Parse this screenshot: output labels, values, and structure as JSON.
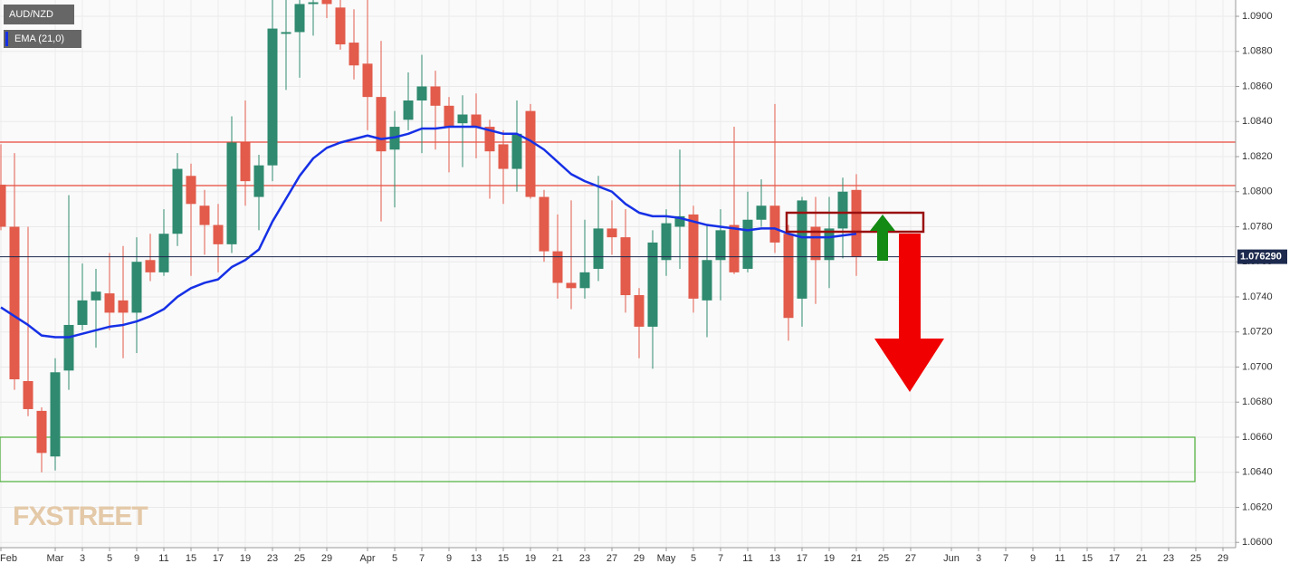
{
  "chart_data": {
    "type": "candlestick",
    "symbol": "AUD/NZD",
    "watermark": "FXSTREET",
    "categories": [
      "Feb",
      null,
      null,
      null,
      "Mar",
      null,
      "3",
      null,
      "5",
      null,
      "9",
      null,
      "11",
      null,
      "15",
      null,
      "17",
      null,
      "19",
      null,
      "23",
      null,
      "25",
      null,
      "29",
      null,
      null,
      "Apr",
      null,
      "5",
      null,
      "7",
      null,
      "9",
      null,
      "13",
      null,
      "15",
      null,
      "19",
      null,
      "21",
      null,
      "23",
      null,
      "27",
      null,
      "29",
      null,
      "May",
      null,
      "5",
      null,
      "7",
      null,
      "11",
      null,
      "13",
      null,
      "17",
      null,
      "19",
      null,
      "21",
      null,
      "25",
      null,
      "27",
      null,
      null,
      "Jun",
      null,
      "3",
      null,
      "7",
      null,
      "9",
      null,
      "11",
      null,
      "15",
      null,
      "17",
      null,
      "21",
      null,
      "23",
      null,
      "25",
      null,
      "29"
    ],
    "open": [
      1.0804,
      1.078,
      1.0692,
      1.0675,
      1.0649,
      1.0698,
      1.0724,
      1.0738,
      1.0742,
      1.0738,
      1.0731,
      1.0761,
      1.0754,
      1.0776,
      1.0809,
      1.0792,
      1.0781,
      1.077,
      1.0828,
      1.0797,
      1.0815,
      1.089,
      1.0891,
      1.0907,
      1.091,
      1.0905,
      1.0885,
      1.0873,
      1.0854,
      1.0824,
      1.0841,
      1.0852,
      1.086,
      1.0849,
      1.0839,
      1.0844,
      1.0837,
      1.0827,
      1.0813,
      1.0846,
      1.0797,
      1.0766,
      1.0748,
      1.0745,
      1.0756,
      1.0779,
      1.0774,
      1.0741,
      1.0723,
      1.0761,
      1.078,
      1.0787,
      1.0738,
      1.0761,
      1.0781,
      1.0756,
      1.0784,
      1.0792,
      1.0776,
      1.0739,
      1.078,
      1.0761,
      1.0779,
      1.0801,
      null,
      null,
      null,
      null,
      null,
      null,
      null,
      null,
      null,
      null,
      null,
      null,
      null,
      null,
      null,
      null,
      null,
      null,
      null,
      null,
      null,
      null,
      null,
      null,
      null,
      null,
      null
    ],
    "high": [
      1.0827,
      1.0822,
      1.078,
      1.0677,
      1.0705,
      1.0798,
      1.0759,
      1.0756,
      1.0765,
      1.0769,
      1.0774,
      1.0776,
      1.079,
      1.0822,
      1.0816,
      1.0801,
      1.0793,
      1.0843,
      1.0852,
      1.0821,
      1.0912,
      1.091,
      1.0912,
      1.0912,
      1.0914,
      1.0911,
      1.0904,
      1.091,
      1.0886,
      1.0846,
      1.0868,
      1.0878,
      1.0869,
      1.0854,
      1.0855,
      1.0856,
      1.0841,
      1.0835,
      1.0852,
      1.085,
      1.0801,
      1.0787,
      1.0795,
      1.0784,
      1.0809,
      1.0795,
      1.079,
      1.0745,
      1.0778,
      1.079,
      1.0824,
      1.0792,
      1.0781,
      1.079,
      1.0837,
      1.08,
      1.0807,
      1.085,
      1.0781,
      1.0797,
      1.0797,
      1.0797,
      1.0808,
      1.081,
      null,
      null,
      null,
      null,
      null,
      null,
      null,
      null,
      null,
      null,
      null,
      null,
      null,
      null,
      null,
      null,
      null,
      null,
      null,
      null,
      null,
      null,
      null,
      null,
      null,
      null,
      null
    ],
    "low": [
      1.0778,
      1.0687,
      1.0672,
      1.064,
      1.0641,
      1.0687,
      1.0721,
      1.0711,
      1.0721,
      1.0705,
      1.0708,
      1.0749,
      1.0752,
      1.0769,
      1.0752,
      1.0764,
      1.0754,
      1.0765,
      1.0792,
      1.0778,
      1.0806,
      1.0858,
      1.0865,
      1.0889,
      1.0899,
      1.0881,
      1.0864,
      1.0835,
      1.0783,
      1.0791,
      1.0835,
      1.0822,
      1.0824,
      1.0811,
      1.0814,
      1.0819,
      1.0796,
      1.0793,
      1.08,
      1.0796,
      1.076,
      1.0739,
      1.0733,
      1.0739,
      1.0749,
      1.0764,
      1.0731,
      1.0705,
      1.0699,
      1.0752,
      1.0756,
      1.0731,
      1.0717,
      1.0738,
      1.0753,
      1.0754,
      1.078,
      1.0765,
      1.0715,
      1.0723,
      1.0736,
      1.0745,
      1.0762,
      1.0752,
      null,
      null,
      null,
      null,
      null,
      null,
      null,
      null,
      null,
      null,
      null,
      null,
      null,
      null,
      null,
      null,
      null,
      null,
      null,
      null,
      null,
      null,
      null,
      null,
      null,
      null,
      null
    ],
    "close": [
      1.078,
      1.0693,
      1.0676,
      1.0651,
      1.0697,
      1.0724,
      1.0738,
      1.0743,
      1.0731,
      1.0731,
      1.076,
      1.0754,
      1.0776,
      1.0813,
      1.0793,
      1.0781,
      1.077,
      1.0828,
      1.0806,
      1.0815,
      1.0893,
      1.0891,
      1.0907,
      1.0908,
      1.0907,
      1.0884,
      1.0872,
      1.0854,
      1.0823,
      1.0837,
      1.0852,
      1.086,
      1.0849,
      1.0837,
      1.0844,
      1.0837,
      1.0823,
      1.0813,
      1.0833,
      1.0797,
      1.0766,
      1.0748,
      1.0745,
      1.0754,
      1.0779,
      1.0774,
      1.0741,
      1.0723,
      1.0771,
      1.0782,
      1.0786,
      1.0739,
      1.0761,
      1.0778,
      1.0754,
      1.0784,
      1.0792,
      1.0771,
      1.0728,
      1.0795,
      1.0761,
      1.0779,
      1.08,
      1.0763,
      null,
      null,
      null,
      null,
      null,
      null,
      null,
      null,
      null,
      null,
      null,
      null,
      null,
      null,
      null,
      null,
      null,
      null,
      null,
      null,
      null,
      null,
      null,
      null,
      null,
      null,
      null
    ],
    "up_color": "#2f8a6f",
    "down_color": "#e25b4b",
    "series": [
      {
        "name": "EMA (21,0)",
        "color": "#1630e6",
        "values": [
          1.0734,
          1.0729,
          1.0724,
          1.0718,
          1.0717,
          1.0717,
          1.0719,
          1.0721,
          1.0723,
          1.0724,
          1.0726,
          1.0729,
          1.0733,
          1.074,
          1.0745,
          1.0748,
          1.075,
          1.0757,
          1.0761,
          1.0767,
          1.0783,
          1.0796,
          1.0809,
          1.0819,
          1.0825,
          1.0828,
          1.083,
          1.0832,
          1.083,
          1.0831,
          1.0833,
          1.0836,
          1.0836,
          1.0837,
          1.0837,
          1.0837,
          1.0835,
          1.0833,
          1.0833,
          1.0829,
          1.0824,
          1.0817,
          1.081,
          1.0806,
          1.0803,
          1.08,
          1.0793,
          1.0788,
          1.0786,
          1.0786,
          1.0785,
          1.0783,
          1.0781,
          1.078,
          1.0779,
          1.0778,
          1.0779,
          1.0779,
          1.0776,
          1.0774,
          1.0774,
          1.0774,
          1.0775,
          1.0776,
          null,
          null,
          null,
          null,
          null,
          null,
          null,
          null,
          null,
          null,
          null,
          null,
          null,
          null,
          null,
          null,
          null,
          null,
          null,
          null,
          null,
          null,
          null,
          null,
          null,
          null,
          null
        ]
      }
    ],
    "ylim": [
      1.0597,
      1.09093
    ],
    "yticks": [
      {
        "value": 1.06,
        "label": "1.0600"
      },
      {
        "value": 1.062,
        "label": "1.0620"
      },
      {
        "value": 1.064,
        "label": "1.0640"
      },
      {
        "value": 1.066,
        "label": "1.0660"
      },
      {
        "value": 1.068,
        "label": "1.0680"
      },
      {
        "value": 1.07,
        "label": "1.0700"
      },
      {
        "value": 1.072,
        "label": "1.0720"
      },
      {
        "value": 1.074,
        "label": "1.0740"
      },
      {
        "value": 1.076,
        "label": "1.0760"
      },
      {
        "value": 1.078,
        "label": "1.0780"
      },
      {
        "value": 1.08,
        "label": "1.0800"
      },
      {
        "value": 1.082,
        "label": "1.0820"
      },
      {
        "value": 1.084,
        "label": "1.0840"
      },
      {
        "value": 1.086,
        "label": "1.0860"
      },
      {
        "value": 1.088,
        "label": "1.0880"
      },
      {
        "value": 1.09,
        "label": "1.0900"
      }
    ],
    "last_price": {
      "value": 1.07629,
      "label": "1.076290"
    },
    "last_price_color": "#1d2a4e",
    "grid": true
  }
}
